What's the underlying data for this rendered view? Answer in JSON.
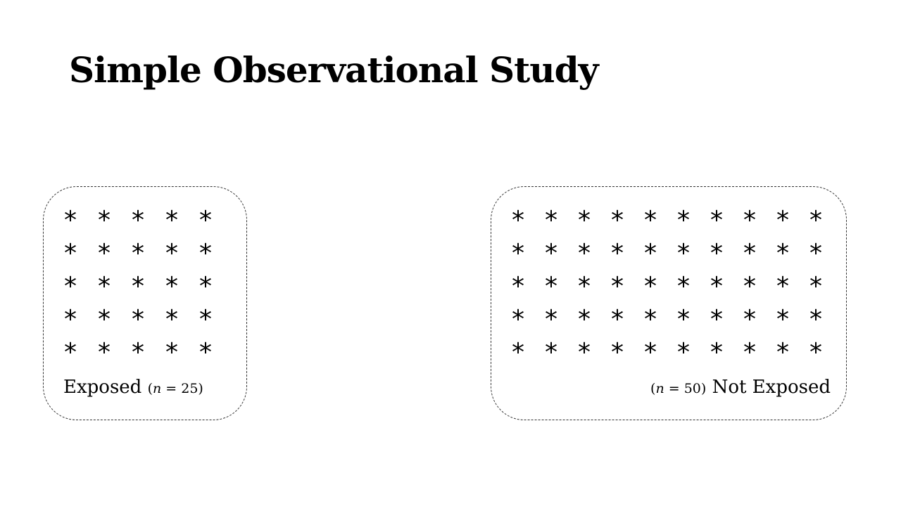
{
  "title": "Simple Observational Study",
  "groups": {
    "exposed": {
      "label": "Exposed",
      "count_prefix": "(",
      "n_symbol": "n",
      "count_suffix": " = 25)",
      "count": 25,
      "rows": 5,
      "columns": 5,
      "symbol": "*"
    },
    "not_exposed": {
      "label": "Not Exposed",
      "count_prefix": "(",
      "n_symbol": "n",
      "count_suffix": " = 50)",
      "count": 50,
      "rows": 5,
      "columns": 10,
      "symbol": "*"
    }
  }
}
